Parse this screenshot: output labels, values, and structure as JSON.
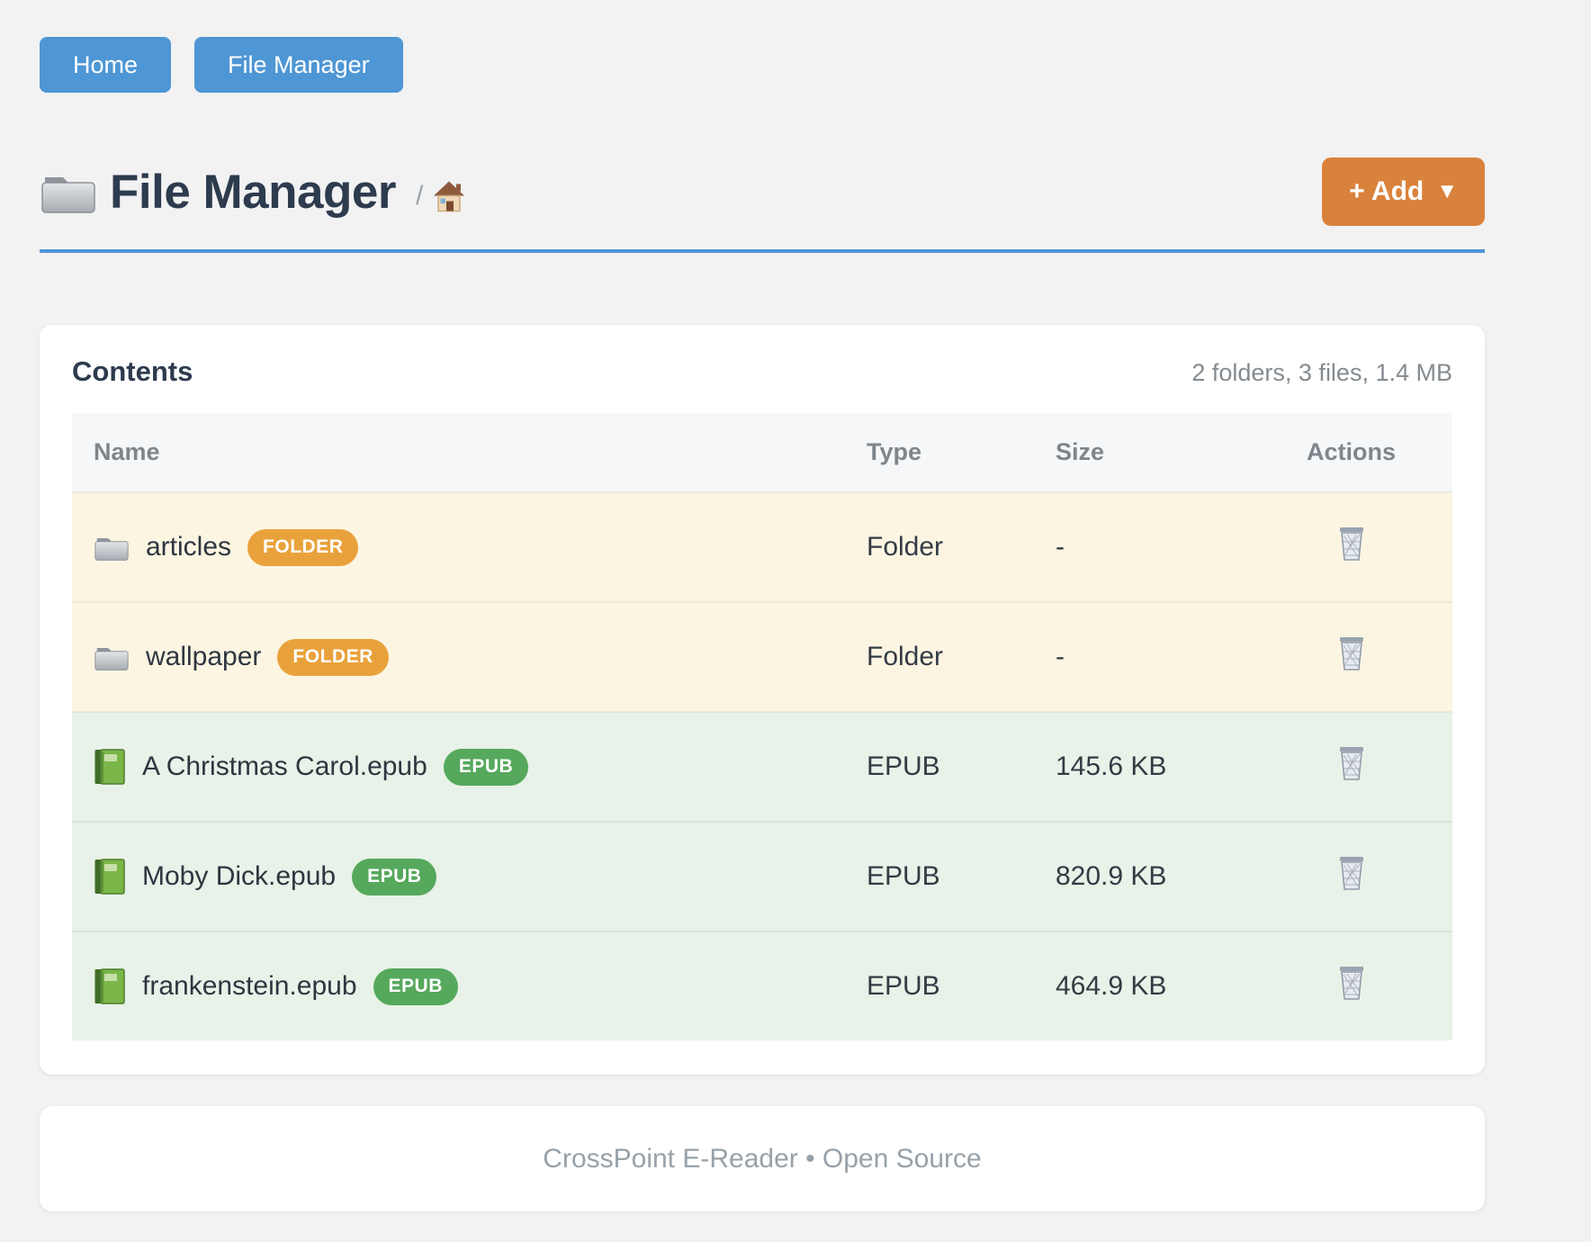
{
  "nav": {
    "home_label": "Home",
    "file_manager_label": "File Manager"
  },
  "header": {
    "title": "File Manager",
    "title_icon": "folder-icon",
    "breadcrumb_separator": "/",
    "breadcrumb_home_icon": "house-icon",
    "add_button": {
      "label": "+ Add",
      "caret": "▼"
    }
  },
  "contents": {
    "title": "Contents",
    "summary": "2 folders, 3 files, 1.4 MB",
    "columns": [
      "Name",
      "Type",
      "Size",
      "Actions"
    ],
    "rows": [
      {
        "kind": "folder",
        "icon": "folder-icon",
        "name": "articles",
        "badge": "FOLDER",
        "type": "Folder",
        "size": "-",
        "action_icon": "trash-icon"
      },
      {
        "kind": "folder",
        "icon": "folder-icon",
        "name": "wallpaper",
        "badge": "FOLDER",
        "type": "Folder",
        "size": "-",
        "action_icon": "trash-icon"
      },
      {
        "kind": "epub",
        "icon": "book-icon",
        "name": "A Christmas Carol.epub",
        "badge": "EPUB",
        "type": "EPUB",
        "size": "145.6 KB",
        "action_icon": "trash-icon"
      },
      {
        "kind": "epub",
        "icon": "book-icon",
        "name": "Moby Dick.epub",
        "badge": "EPUB",
        "type": "EPUB",
        "size": "820.9 KB",
        "action_icon": "trash-icon"
      },
      {
        "kind": "epub",
        "icon": "book-icon",
        "name": "frankenstein.epub",
        "badge": "EPUB",
        "type": "EPUB",
        "size": "464.9 KB",
        "action_icon": "trash-icon"
      }
    ]
  },
  "footer": {
    "text": "CrossPoint E-Reader • Open Source"
  },
  "colors": {
    "page_background": "#f2f2f3",
    "primary_blue": "#4e96d4",
    "add_orange": "#d9823c",
    "folder_badge_orange": "#e9a23b",
    "epub_badge_green": "#55a85c",
    "folder_row_background": "#fcf5e2",
    "epub_row_background": "#e8f2e8",
    "heading_text": "#2d3b4e",
    "muted_text": "#848b90"
  }
}
